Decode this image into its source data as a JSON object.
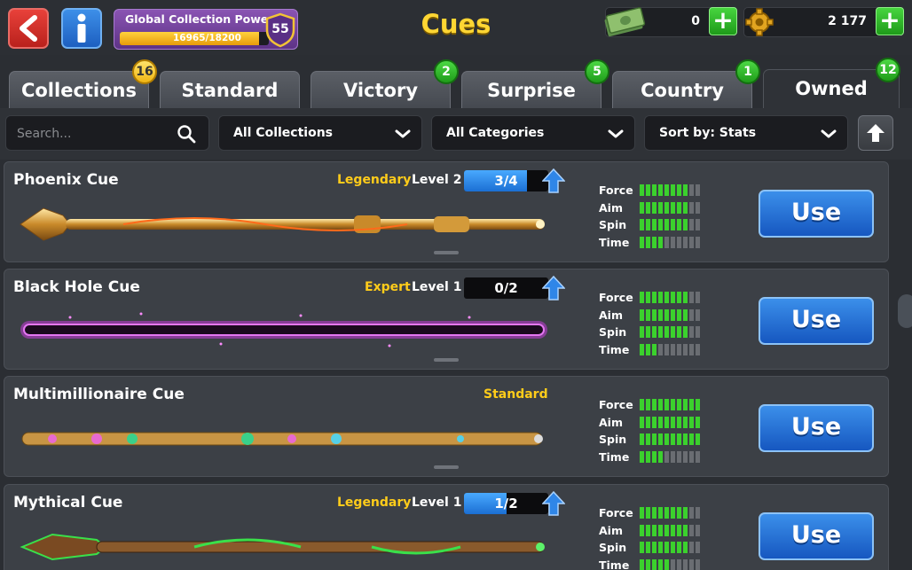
{
  "header": {
    "title": "Cues",
    "collection_power": {
      "label": "Global Collection Power",
      "progress_text": "16965/18200",
      "fraction": 0.932,
      "level": "55"
    },
    "cash": {
      "value": "0",
      "icon": "cash-icon"
    },
    "coins": {
      "value": "2 177",
      "icon": "gear-coin-icon"
    },
    "plus_symbol": "+"
  },
  "tabs": [
    {
      "label": "Collections",
      "badge": "16",
      "badge_color": "yellow"
    },
    {
      "label": "Standard",
      "badge": "",
      "badge_color": ""
    },
    {
      "label": "Victory",
      "badge": "2",
      "badge_color": "green"
    },
    {
      "label": "Surprise",
      "badge": "5",
      "badge_color": "green"
    },
    {
      "label": "Country",
      "badge": "1",
      "badge_color": "green"
    },
    {
      "label": "Owned",
      "badge": "12",
      "badge_color": "green",
      "active": true
    }
  ],
  "filters": {
    "search_placeholder": "Search...",
    "collections": "All Collections",
    "categories": "All Categories",
    "sort": "Sort by: Stats"
  },
  "stat_labels": [
    "Force",
    "Aim",
    "Spin",
    "Time"
  ],
  "use_label": "Use",
  "colors": {
    "accent_yellow": "#ffcc1a",
    "stat_green": "#3bd12d",
    "use_blue": "#1f6fd6"
  },
  "cues": [
    {
      "name": "Phoenix Cue",
      "rarity": "Legendary",
      "level": "Level 2",
      "progress": "3/4",
      "progress_fraction": 0.75,
      "stats": [
        8,
        8,
        8,
        4
      ],
      "max": 10,
      "art": "phoenix"
    },
    {
      "name": "Black Hole Cue",
      "rarity": "Expert",
      "level": "Level 1",
      "progress": "0/2",
      "progress_fraction": 0,
      "stats": [
        8,
        8,
        8,
        3
      ],
      "max": 10,
      "art": "blackhole"
    },
    {
      "name": "Multimillionaire Cue",
      "rarity": "Standard",
      "level": "",
      "progress": "",
      "progress_fraction": 0,
      "stats": [
        10,
        10,
        10,
        4
      ],
      "max": 10,
      "art": "multi"
    },
    {
      "name": "Mythical Cue",
      "rarity": "Legendary",
      "level": "Level 1",
      "progress": "1/2",
      "progress_fraction": 0.5,
      "stats": [
        8,
        8,
        8,
        5
      ],
      "max": 10,
      "art": "mythical"
    }
  ]
}
